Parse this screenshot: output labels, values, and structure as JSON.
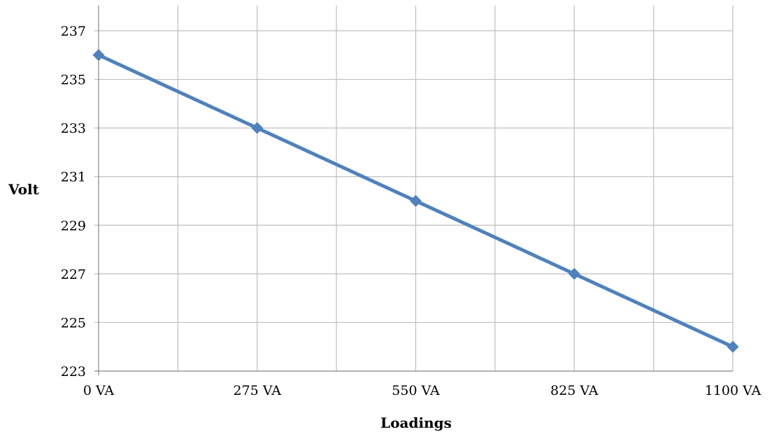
{
  "chart_data": {
    "type": "line",
    "categories": [
      "0 VA",
      "275 VA",
      "550 VA",
      "825 VA",
      "1100 VA"
    ],
    "series": [
      {
        "values": [
          236,
          233,
          230,
          227,
          224
        ]
      }
    ],
    "title": "",
    "xlabel": "Loadings",
    "ylabel": "Volt",
    "ylim": [
      223,
      237
    ],
    "yticks": [
      "223",
      "225",
      "227",
      "229",
      "231",
      "233",
      "235",
      "237"
    ],
    "grid": true,
    "legend": "none",
    "marker": "diamond",
    "colors": {
      "series": "#4f81bd",
      "grid": "#bfbfbf",
      "axis": "#868686"
    }
  }
}
